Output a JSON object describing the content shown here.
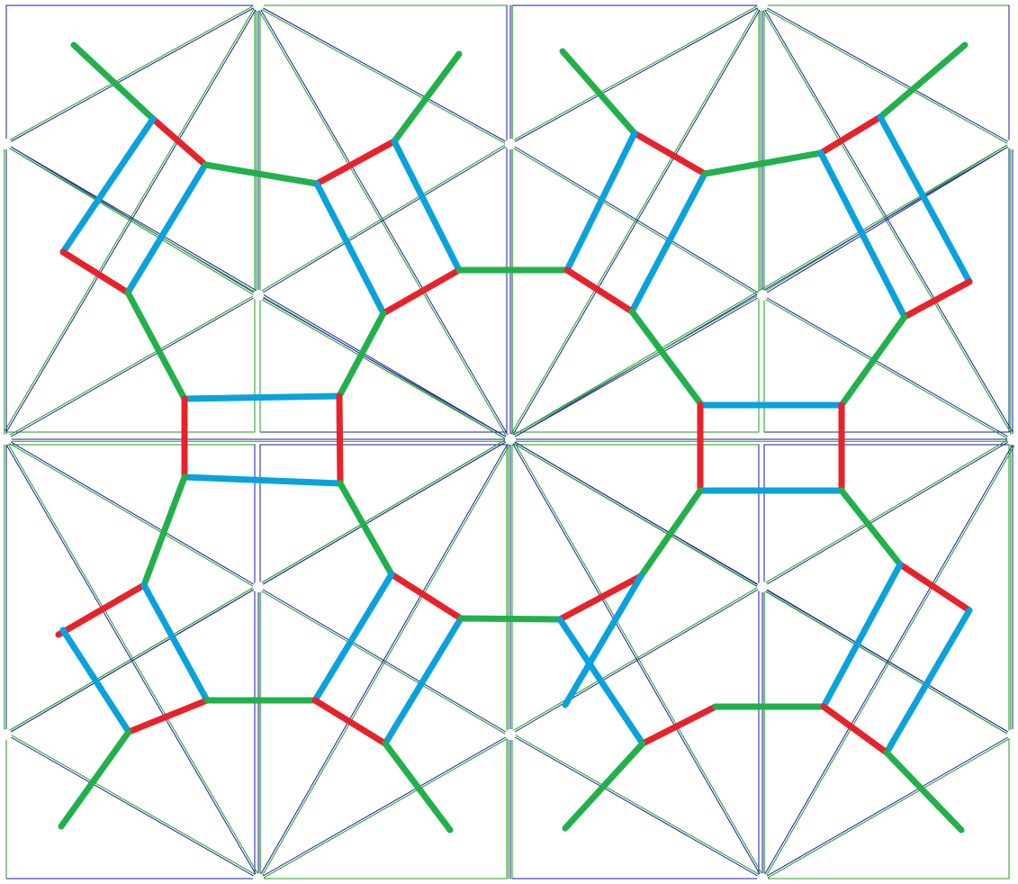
{
  "colors": {
    "background": "#ffffff",
    "grid_blue": "#1a1aa8",
    "grid_green": "#1e9e1e",
    "edge_green": "#22b04b",
    "edge_red": "#e8222a",
    "edge_blue": "#0aa2dc",
    "joint": "#cccccc"
  }
}
